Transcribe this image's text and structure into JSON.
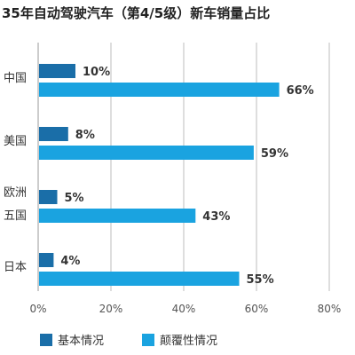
{
  "chart_data": {
    "type": "bar",
    "orientation": "horizontal",
    "title": "35年自动驾驶汽车（第4/5级）新车销量占比",
    "categories": [
      [
        "中国"
      ],
      [
        "美国"
      ],
      [
        "欧洲",
        "五国"
      ],
      [
        "日本"
      ]
    ],
    "series": [
      {
        "name": "基本情况",
        "color": "#1a6ea8",
        "values": [
          10,
          8,
          5,
          4
        ],
        "labels": [
          "10%",
          "8%",
          "5%",
          "4%"
        ]
      },
      {
        "name": "颠覆性情况",
        "color": "#1aa3e0",
        "values": [
          66,
          59,
          43,
          55
        ],
        "labels": [
          "66%",
          "59%",
          "43%",
          "55%"
        ]
      }
    ],
    "xlim": [
      0,
      80
    ],
    "xticks": [
      0,
      20,
      40,
      60,
      80
    ],
    "xtick_labels": [
      "0%",
      "20%",
      "40%",
      "60%",
      "80%"
    ],
    "grid": true,
    "legend": "bottom-left"
  }
}
